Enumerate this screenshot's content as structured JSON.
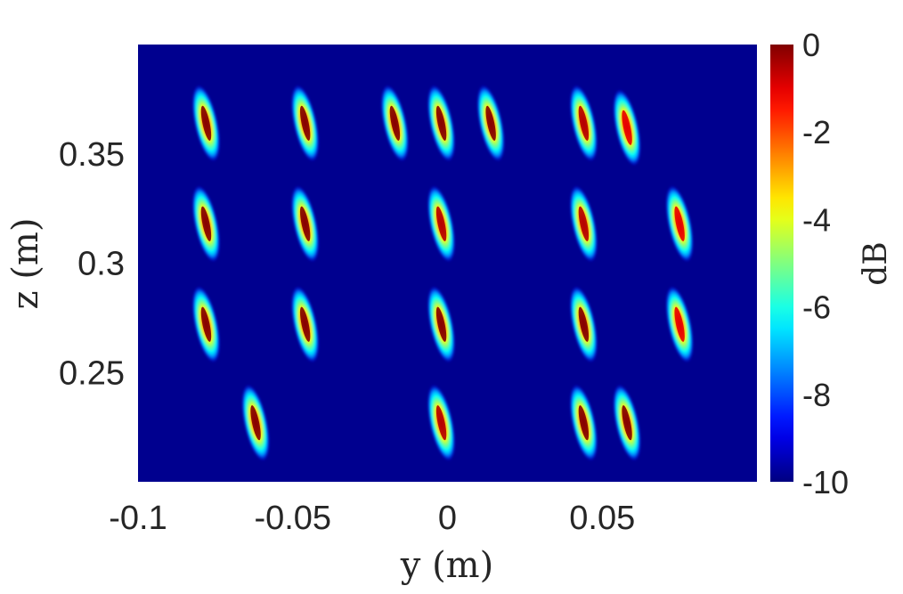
{
  "chart_data": {
    "type": "heatmap",
    "title": "",
    "xlabel": "y (m)",
    "ylabel": "z (m)",
    "xlim": [
      -0.1,
      0.1
    ],
    "ylim": [
      0.2,
      0.4
    ],
    "x_ticks": [
      -0.1,
      -0.05,
      0,
      0.05
    ],
    "x_tick_labels": [
      "-0.1",
      "-0.05",
      "0",
      "0.05"
    ],
    "y_ticks": [
      0.25,
      0.3,
      0.35
    ],
    "y_tick_labels": [
      "0.25",
      "0.3",
      "0.35"
    ],
    "colorbar": {
      "label": "dB",
      "range": [
        -10,
        0
      ],
      "ticks": [
        0,
        -2,
        -4,
        -6,
        -8,
        -10
      ],
      "tick_labels": [
        "0",
        "-2",
        "-4",
        "-6",
        "-8",
        "-10"
      ],
      "colormap": "jet"
    },
    "background_color": "#00008f",
    "peaks": [
      {
        "y": -0.078,
        "z": 0.364,
        "peak_db": 0
      },
      {
        "y": -0.046,
        "z": 0.364,
        "peak_db": 0
      },
      {
        "y": -0.017,
        "z": 0.364,
        "peak_db": 0
      },
      {
        "y": -0.002,
        "z": 0.364,
        "peak_db": 0
      },
      {
        "y": 0.014,
        "z": 0.364,
        "peak_db": 0
      },
      {
        "y": 0.044,
        "z": 0.364,
        "peak_db": -0.5
      },
      {
        "y": 0.058,
        "z": 0.362,
        "peak_db": -1
      },
      {
        "y": -0.078,
        "z": 0.318,
        "peak_db": 0
      },
      {
        "y": -0.046,
        "z": 0.318,
        "peak_db": 0
      },
      {
        "y": -0.002,
        "z": 0.318,
        "peak_db": -0.5
      },
      {
        "y": 0.044,
        "z": 0.318,
        "peak_db": -0.5
      },
      {
        "y": 0.075,
        "z": 0.318,
        "peak_db": -1
      },
      {
        "y": -0.078,
        "z": 0.272,
        "peak_db": 0
      },
      {
        "y": -0.046,
        "z": 0.272,
        "peak_db": 0
      },
      {
        "y": -0.002,
        "z": 0.272,
        "peak_db": 0
      },
      {
        "y": 0.044,
        "z": 0.272,
        "peak_db": 0
      },
      {
        "y": 0.075,
        "z": 0.272,
        "peak_db": -1
      },
      {
        "y": -0.062,
        "z": 0.227,
        "peak_db": 0
      },
      {
        "y": -0.002,
        "z": 0.227,
        "peak_db": -0.5
      },
      {
        "y": 0.044,
        "z": 0.227,
        "peak_db": 0
      },
      {
        "y": 0.058,
        "z": 0.227,
        "peak_db": 0
      }
    ]
  }
}
